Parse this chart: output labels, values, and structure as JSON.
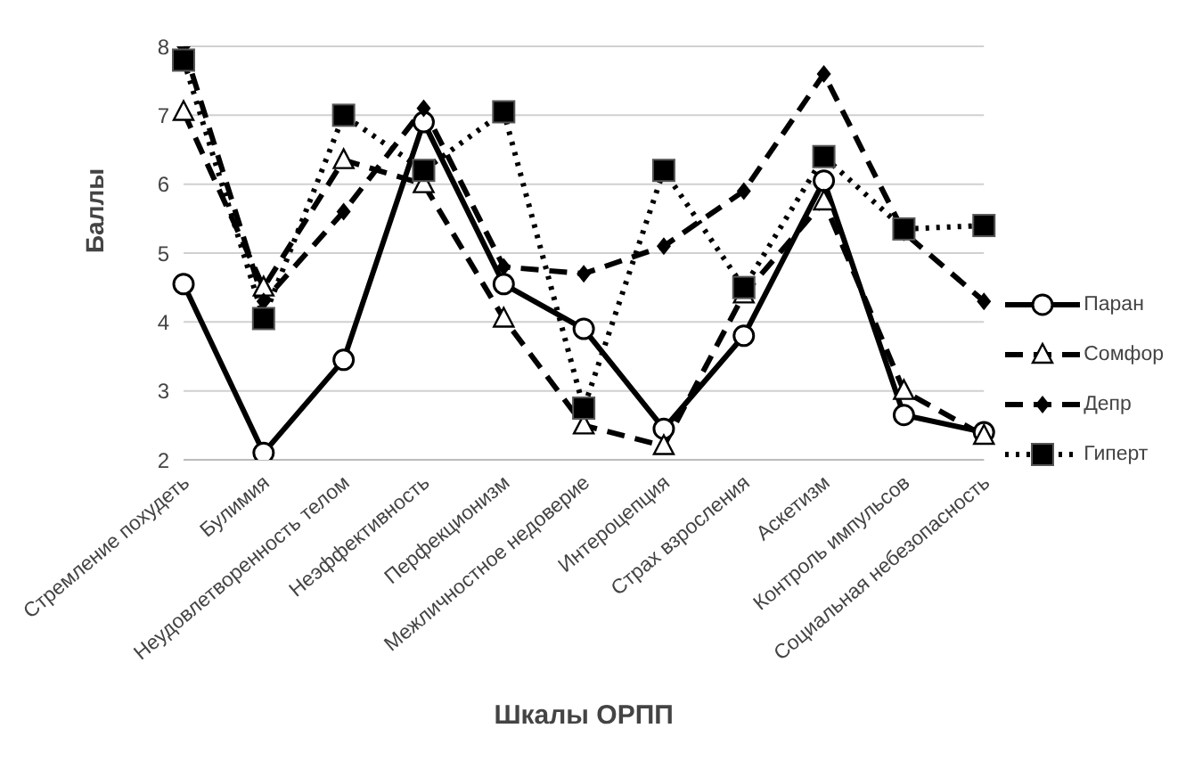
{
  "chart_data": {
    "type": "line",
    "xlabel": "Шкалы ОРПП",
    "ylabel": "Баллы",
    "categories": [
      "Стремление похудеть",
      "Булимия",
      "Неудовлетворенность телом",
      "Неэффективность",
      "Перфекционизм",
      "Межличностное недоверие",
      "Интероцепция",
      "Страх взросления",
      "Аскетизм",
      "Контроль импульсов",
      "Социальная небезопасность"
    ],
    "series": [
      {
        "name": "Паран",
        "color": "#000000",
        "marker": "circle",
        "line_style": "solid",
        "values": [
          4.55,
          2.1,
          3.45,
          6.9,
          4.55,
          3.9,
          2.45,
          3.8,
          6.05,
          2.65,
          2.4
        ]
      },
      {
        "name": "Сомфор",
        "color": "#000000",
        "marker": "triangle",
        "line_style": "dashed",
        "values": [
          7.05,
          4.5,
          6.35,
          6.0,
          4.05,
          2.5,
          2.2,
          4.4,
          5.75,
          3.0,
          2.35
        ]
      },
      {
        "name": "Депр",
        "color": "#000000",
        "marker": "diamond",
        "line_style": "dashed",
        "values": [
          8.0,
          4.3,
          5.6,
          7.1,
          4.8,
          4.7,
          5.1,
          5.9,
          7.6,
          5.3,
          4.3
        ]
      },
      {
        "name": "Гиперт",
        "color": "#000000",
        "marker": "square",
        "line_style": "dotted",
        "values": [
          7.8,
          4.05,
          7.0,
          6.2,
          7.05,
          2.75,
          6.2,
          4.5,
          6.4,
          5.35,
          5.4
        ]
      }
    ],
    "ylim": [
      2,
      8
    ],
    "yticks": [
      2,
      3,
      4,
      5,
      6,
      7,
      8
    ],
    "grid": "y",
    "legend": "right"
  }
}
